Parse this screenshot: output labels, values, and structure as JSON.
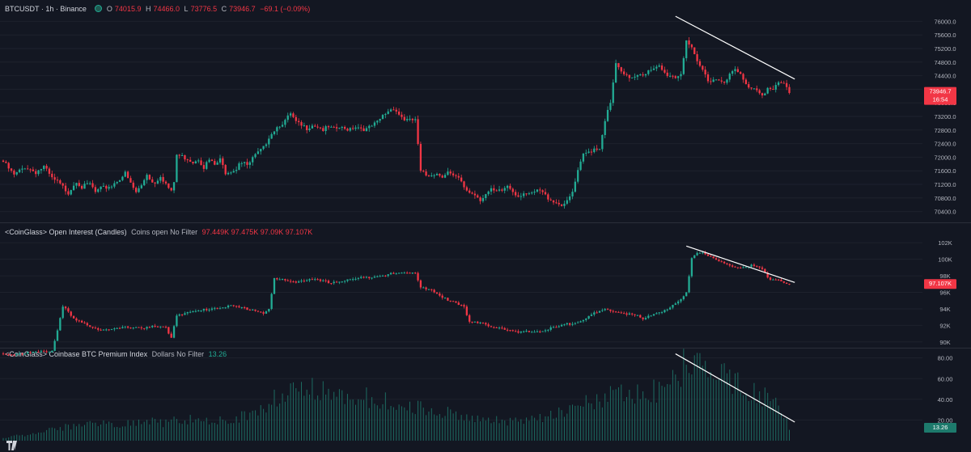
{
  "header": {
    "symbol": "BTCUSDT · 1h · Binance",
    "o_label": "O",
    "o_value": "74015.9",
    "h_label": "H",
    "h_value": "74466.0",
    "l_label": "L",
    "l_value": "73776.5",
    "c_label": "C",
    "c_value": "73946.7",
    "change": "−69.1 (−0.09%)"
  },
  "colors": {
    "background": "#131722",
    "up": "#22ab94",
    "down": "#f23645",
    "grid": "#1e222d",
    "text": "#b2b5be",
    "trendline": "#ffffff"
  },
  "chart_data": [
    {
      "type": "candlestick",
      "title": "BTCUSDT · 1h · Binance",
      "ylim": [
        70200,
        76200
      ],
      "yticks": [
        "76000.0",
        "75600.0",
        "75200.0",
        "74800.0",
        "74400.0",
        "74000.0",
        "73600.0",
        "73200.0",
        "72800.0",
        "72400.0",
        "72000.0",
        "71600.0",
        "71200.0",
        "70800.0",
        "70400.0"
      ],
      "last_price_label": "73946.7",
      "countdown_label": "16:54",
      "anchors": [
        [
          0,
          71900
        ],
        [
          4,
          71500
        ],
        [
          8,
          71750
        ],
        [
          12,
          71600
        ],
        [
          15,
          71750
        ],
        [
          18,
          71400
        ],
        [
          20,
          71300
        ],
        [
          24,
          71000
        ],
        [
          27,
          71350
        ],
        [
          29,
          71150
        ],
        [
          32,
          71250
        ],
        [
          34,
          71000
        ],
        [
          36,
          71100
        ],
        [
          40,
          71200
        ],
        [
          42,
          71350
        ],
        [
          45,
          71550
        ],
        [
          47,
          71250
        ],
        [
          49,
          71000
        ],
        [
          51,
          71200
        ],
        [
          53,
          71550
        ],
        [
          55,
          71300
        ],
        [
          56,
          71300
        ],
        [
          58,
          71500
        ],
        [
          60,
          71250
        ],
        [
          62,
          71000
        ],
        [
          63,
          71300
        ],
        [
          64,
          72100
        ],
        [
          66,
          72050
        ],
        [
          68,
          72000
        ],
        [
          70,
          71900
        ],
        [
          72,
          72000
        ],
        [
          74,
          71750
        ],
        [
          76,
          71950
        ],
        [
          78,
          71800
        ],
        [
          80,
          71950
        ],
        [
          82,
          71600
        ],
        [
          86,
          71700
        ],
        [
          87,
          71900
        ],
        [
          89,
          71900
        ],
        [
          90,
          71750
        ],
        [
          92,
          72000
        ],
        [
          94,
          72150
        ],
        [
          96,
          72300
        ],
        [
          98,
          72650
        ],
        [
          100,
          72850
        ],
        [
          102,
          73000
        ],
        [
          104,
          73100
        ],
        [
          106,
          73300
        ],
        [
          108,
          73050
        ],
        [
          110,
          72950
        ],
        [
          112,
          72900
        ],
        [
          114,
          73000
        ],
        [
          116,
          72950
        ],
        [
          118,
          72850
        ],
        [
          120,
          72900
        ],
        [
          122,
          72850
        ],
        [
          124,
          72900
        ],
        [
          126,
          72850
        ],
        [
          128,
          72900
        ],
        [
          130,
          72950
        ],
        [
          132,
          72900
        ],
        [
          134,
          72850
        ],
        [
          136,
          72950
        ],
        [
          138,
          73050
        ],
        [
          140,
          73250
        ],
        [
          142,
          73400
        ],
        [
          144,
          73500
        ],
        [
          146,
          73300
        ],
        [
          148,
          73150
        ],
        [
          150,
          73100
        ],
        [
          152,
          73150
        ],
        [
          154,
          71600
        ],
        [
          156,
          71500
        ],
        [
          158,
          71550
        ],
        [
          160,
          71550
        ],
        [
          162,
          71500
        ],
        [
          164,
          71600
        ],
        [
          166,
          71450
        ],
        [
          168,
          71400
        ],
        [
          170,
          71150
        ],
        [
          172,
          71000
        ],
        [
          174,
          70950
        ],
        [
          176,
          70800
        ],
        [
          178,
          70950
        ],
        [
          180,
          71050
        ],
        [
          182,
          71000
        ],
        [
          184,
          71050
        ],
        [
          186,
          71200
        ],
        [
          188,
          71050
        ],
        [
          190,
          70900
        ],
        [
          192,
          71000
        ],
        [
          194,
          70900
        ],
        [
          196,
          71000
        ],
        [
          198,
          71050
        ],
        [
          200,
          70900
        ],
        [
          202,
          70800
        ],
        [
          204,
          70700
        ],
        [
          206,
          70650
        ],
        [
          208,
          70700
        ],
        [
          210,
          71000
        ],
        [
          212,
          71600
        ],
        [
          214,
          72100
        ],
        [
          216,
          72200
        ],
        [
          218,
          72300
        ],
        [
          220,
          72300
        ],
        [
          222,
          73150
        ],
        [
          224,
          73600
        ],
        [
          226,
          74800
        ],
        [
          228,
          74500
        ],
        [
          230,
          74400
        ],
        [
          232,
          74400
        ],
        [
          234,
          74500
        ],
        [
          236,
          74500
        ],
        [
          238,
          74550
        ],
        [
          240,
          74600
        ],
        [
          242,
          74700
        ],
        [
          244,
          74500
        ],
        [
          246,
          74450
        ],
        [
          248,
          74400
        ],
        [
          250,
          74500
        ],
        [
          252,
          75500
        ],
        [
          254,
          75200
        ],
        [
          256,
          74800
        ],
        [
          258,
          74600
        ],
        [
          260,
          74300
        ],
        [
          262,
          74350
        ],
        [
          264,
          74300
        ],
        [
          266,
          74300
        ],
        [
          268,
          74450
        ],
        [
          270,
          74600
        ],
        [
          272,
          74450
        ],
        [
          274,
          74150
        ],
        [
          276,
          74100
        ],
        [
          278,
          74050
        ],
        [
          280,
          73900
        ],
        [
          282,
          74050
        ],
        [
          284,
          74000
        ],
        [
          286,
          74200
        ],
        [
          288,
          74200
        ],
        [
          290,
          73950
        ]
      ]
    },
    {
      "type": "candlestick",
      "title": "<CoinGlass> Open Interest (Candles)",
      "settings_label": "Coins open No Filter",
      "values_label": "97.449K 97.475K 97.09K 97.107K",
      "ylim": [
        89500,
        102800
      ],
      "yticks": [
        "102K",
        "100K",
        "98K",
        "96K",
        "94K",
        "92K",
        "90K"
      ],
      "last_value_label": "97.107K",
      "anchors": [
        [
          0,
          88600
        ],
        [
          12,
          88800
        ],
        [
          18,
          89000
        ],
        [
          20,
          91500
        ],
        [
          22,
          94500
        ],
        [
          24,
          93600
        ],
        [
          26,
          92800
        ],
        [
          28,
          92500
        ],
        [
          30,
          92300
        ],
        [
          33,
          91900
        ],
        [
          36,
          91600
        ],
        [
          40,
          91500
        ],
        [
          44,
          91800
        ],
        [
          48,
          91900
        ],
        [
          52,
          91800
        ],
        [
          56,
          91900
        ],
        [
          60,
          91800
        ],
        [
          62,
          90600
        ],
        [
          64,
          93400
        ],
        [
          68,
          93600
        ],
        [
          72,
          93800
        ],
        [
          76,
          94100
        ],
        [
          80,
          94300
        ],
        [
          84,
          94400
        ],
        [
          88,
          94200
        ],
        [
          92,
          94000
        ],
        [
          96,
          93600
        ],
        [
          98,
          94000
        ],
        [
          100,
          97700
        ],
        [
          104,
          97500
        ],
        [
          108,
          97400
        ],
        [
          112,
          97600
        ],
        [
          116,
          97500
        ],
        [
          120,
          97300
        ],
        [
          124,
          97400
        ],
        [
          128,
          97600
        ],
        [
          132,
          97800
        ],
        [
          136,
          98000
        ],
        [
          140,
          98200
        ],
        [
          144,
          98300
        ],
        [
          148,
          98400
        ],
        [
          152,
          98500
        ],
        [
          154,
          96800
        ],
        [
          158,
          96300
        ],
        [
          162,
          95400
        ],
        [
          166,
          95000
        ],
        [
          170,
          94400
        ],
        [
          172,
          92500
        ],
        [
          176,
          92300
        ],
        [
          180,
          92000
        ],
        [
          184,
          91800
        ],
        [
          188,
          91300
        ],
        [
          190,
          91200
        ],
        [
          194,
          91300
        ],
        [
          198,
          91400
        ],
        [
          202,
          91700
        ],
        [
          206,
          92000
        ],
        [
          210,
          92400
        ],
        [
          214,
          92800
        ],
        [
          218,
          93500
        ],
        [
          222,
          93900
        ],
        [
          226,
          93800
        ],
        [
          230,
          93500
        ],
        [
          234,
          93200
        ],
        [
          236,
          92700
        ],
        [
          238,
          93200
        ],
        [
          242,
          93700
        ],
        [
          246,
          94200
        ],
        [
          250,
          95200
        ],
        [
          252,
          96000
        ],
        [
          254,
          100300
        ],
        [
          256,
          101000
        ],
        [
          258,
          100900
        ],
        [
          260,
          100600
        ],
        [
          262,
          100100
        ],
        [
          264,
          99800
        ],
        [
          266,
          99500
        ],
        [
          268,
          99400
        ],
        [
          270,
          99200
        ],
        [
          272,
          99200
        ],
        [
          274,
          99250
        ],
        [
          276,
          99300
        ],
        [
          278,
          99200
        ],
        [
          280,
          98800
        ],
        [
          282,
          97800
        ],
        [
          286,
          97600
        ],
        [
          290,
          97100
        ]
      ]
    },
    {
      "type": "bar",
      "title": "<CoinGlass> Coinbase BTC Premium Index",
      "settings_label": "Dollars No Filter",
      "values_label": "13.26",
      "ylim": [
        0,
        86
      ],
      "yticks": [
        "80.00",
        "60.00",
        "40.00",
        "20.00"
      ],
      "last_value_label": "13.26",
      "anchors": [
        [
          0,
          3
        ],
        [
          6,
          5
        ],
        [
          10,
          6
        ],
        [
          15,
          10
        ],
        [
          20,
          12
        ],
        [
          25,
          14
        ],
        [
          30,
          15
        ],
        [
          35,
          16
        ],
        [
          40,
          17
        ],
        [
          45,
          16
        ],
        [
          50,
          18
        ],
        [
          55,
          18
        ],
        [
          60,
          17
        ],
        [
          65,
          20
        ],
        [
          70,
          20
        ],
        [
          75,
          18
        ],
        [
          80,
          20
        ],
        [
          85,
          22
        ],
        [
          90,
          25
        ],
        [
          95,
          30
        ],
        [
          100,
          42
        ],
        [
          105,
          44
        ],
        [
          110,
          48
        ],
        [
          115,
          50
        ],
        [
          120,
          48
        ],
        [
          125,
          46
        ],
        [
          130,
          44
        ],
        [
          135,
          42
        ],
        [
          140,
          40
        ],
        [
          145,
          38
        ],
        [
          150,
          35
        ],
        [
          155,
          30
        ],
        [
          160,
          28
        ],
        [
          165,
          26
        ],
        [
          170,
          24
        ],
        [
          175,
          22
        ],
        [
          180,
          20
        ],
        [
          185,
          18
        ],
        [
          190,
          18
        ],
        [
          195,
          20
        ],
        [
          200,
          22
        ],
        [
          205,
          28
        ],
        [
          210,
          32
        ],
        [
          215,
          38
        ],
        [
          220,
          40
        ],
        [
          225,
          44
        ],
        [
          230,
          46
        ],
        [
          235,
          46
        ],
        [
          240,
          48
        ],
        [
          245,
          52
        ],
        [
          250,
          62
        ],
        [
          252,
          82
        ],
        [
          255,
          68
        ],
        [
          258,
          74
        ],
        [
          262,
          66
        ],
        [
          266,
          60
        ],
        [
          270,
          54
        ],
        [
          274,
          50
        ],
        [
          278,
          46
        ],
        [
          282,
          40
        ],
        [
          286,
          32
        ],
        [
          290,
          13.26
        ]
      ]
    }
  ]
}
